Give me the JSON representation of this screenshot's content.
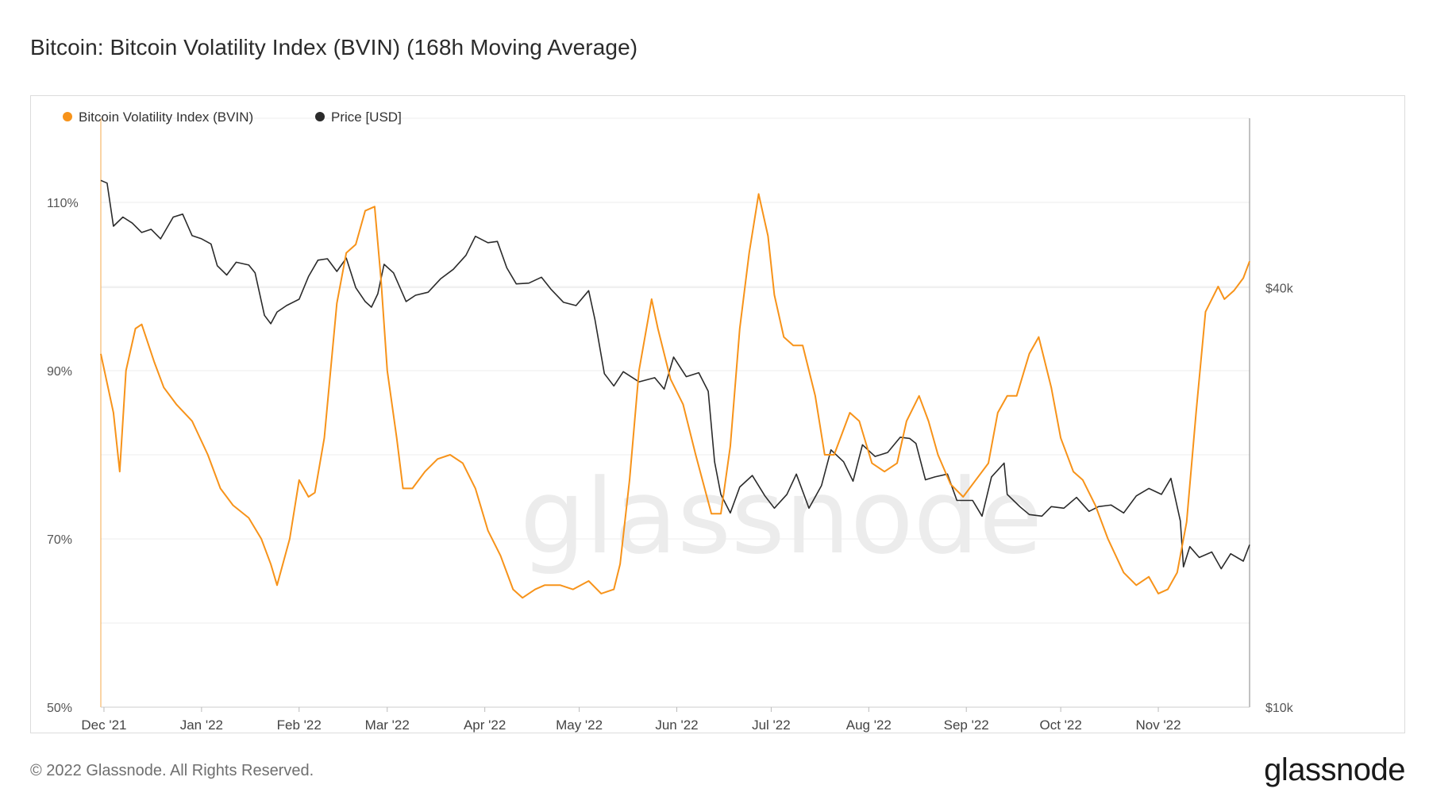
{
  "title": "Bitcoin: Bitcoin Volatility Index (BVIN) (168h Moving Average)",
  "footer": {
    "copyright": "© 2022 Glassnode. All Rights Reserved.",
    "logo": "glassnode"
  },
  "watermark": "glassnode",
  "colors": {
    "bvin": "#f7931a",
    "price": "#2b2b2b",
    "grid": "#ececec",
    "axis_text": "#555555"
  },
  "chart_data": {
    "type": "line",
    "title": "Bitcoin: Bitcoin Volatility Index (BVIN) (168h Moving Average)",
    "x_tick_labels": [
      "Dec '21",
      "Jan '22",
      "Feb '22",
      "Mar '22",
      "Apr '22",
      "May '22",
      "Jun '22",
      "Jul '22",
      "Aug '22",
      "Sep '22",
      "Oct '22",
      "Nov '22"
    ],
    "x_range": [
      "2021-11-30",
      "2022-11-30"
    ],
    "y_left": {
      "range": [
        50,
        120
      ],
      "unit": "%",
      "tick_labels": [
        "50%",
        "70%",
        "90%",
        "110%"
      ],
      "tick_values": [
        50,
        70,
        90,
        110
      ]
    },
    "y_right": {
      "scale": "log",
      "range": [
        10000,
        70000
      ],
      "tick_labels": [
        "$10k",
        "$40k"
      ],
      "tick_values": [
        10000,
        40000
      ]
    },
    "legend_position": "top-left",
    "grid": true,
    "series": [
      {
        "name": "Bitcoin Volatility Index (BVIN)",
        "axis": "left",
        "points": [
          [
            "2021-11-30",
            92
          ],
          [
            "2021-12-04",
            85
          ],
          [
            "2021-12-06",
            78
          ],
          [
            "2021-12-08",
            90
          ],
          [
            "2021-12-11",
            95
          ],
          [
            "2021-12-13",
            95.5
          ],
          [
            "2021-12-17",
            91
          ],
          [
            "2021-12-20",
            88
          ],
          [
            "2021-12-24",
            86
          ],
          [
            "2021-12-29",
            84
          ],
          [
            "2022-01-03",
            80
          ],
          [
            "2022-01-07",
            76
          ],
          [
            "2022-01-11",
            74
          ],
          [
            "2022-01-16",
            72.5
          ],
          [
            "2022-01-20",
            70
          ],
          [
            "2022-01-23",
            67
          ],
          [
            "2022-01-25",
            64.5
          ],
          [
            "2022-01-29",
            70
          ],
          [
            "2022-02-01",
            77
          ],
          [
            "2022-02-04",
            75
          ],
          [
            "2022-02-06",
            75.5
          ],
          [
            "2022-02-09",
            82
          ],
          [
            "2022-02-13",
            98
          ],
          [
            "2022-02-16",
            104
          ],
          [
            "2022-02-19",
            105
          ],
          [
            "2022-02-22",
            109
          ],
          [
            "2022-02-25",
            109.5
          ],
          [
            "2022-02-27",
            101
          ],
          [
            "2022-03-01",
            90
          ],
          [
            "2022-03-04",
            82
          ],
          [
            "2022-03-06",
            76
          ],
          [
            "2022-03-09",
            76
          ],
          [
            "2022-03-13",
            78
          ],
          [
            "2022-03-17",
            79.5
          ],
          [
            "2022-03-21",
            80
          ],
          [
            "2022-03-25",
            79
          ],
          [
            "2022-03-29",
            76
          ],
          [
            "2022-04-02",
            71
          ],
          [
            "2022-04-06",
            68
          ],
          [
            "2022-04-10",
            64
          ],
          [
            "2022-04-13",
            63
          ],
          [
            "2022-04-17",
            64
          ],
          [
            "2022-04-20",
            64.5
          ],
          [
            "2022-04-25",
            64.5
          ],
          [
            "2022-04-29",
            64
          ],
          [
            "2022-05-04",
            65
          ],
          [
            "2022-05-08",
            63.5
          ],
          [
            "2022-05-12",
            64
          ],
          [
            "2022-05-14",
            67
          ],
          [
            "2022-05-17",
            77
          ],
          [
            "2022-05-20",
            90
          ],
          [
            "2022-05-24",
            98.5
          ],
          [
            "2022-05-26",
            95
          ],
          [
            "2022-05-30",
            89
          ],
          [
            "2022-06-03",
            86
          ],
          [
            "2022-06-07",
            80
          ],
          [
            "2022-06-12",
            73
          ],
          [
            "2022-06-15",
            73
          ],
          [
            "2022-06-18",
            81
          ],
          [
            "2022-06-21",
            95
          ],
          [
            "2022-06-24",
            104
          ],
          [
            "2022-06-27",
            111
          ],
          [
            "2022-06-30",
            106
          ],
          [
            "2022-07-02",
            99
          ],
          [
            "2022-07-05",
            94
          ],
          [
            "2022-07-08",
            93
          ],
          [
            "2022-07-11",
            93
          ],
          [
            "2022-07-15",
            87
          ],
          [
            "2022-07-18",
            80
          ],
          [
            "2022-07-21",
            80
          ],
          [
            "2022-07-26",
            85
          ],
          [
            "2022-07-29",
            84
          ],
          [
            "2022-08-02",
            79
          ],
          [
            "2022-08-06",
            78
          ],
          [
            "2022-08-10",
            79
          ],
          [
            "2022-08-13",
            84
          ],
          [
            "2022-08-17",
            87
          ],
          [
            "2022-08-20",
            84
          ],
          [
            "2022-08-23",
            80
          ],
          [
            "2022-08-27",
            76.5
          ],
          [
            "2022-08-31",
            75
          ],
          [
            "2022-09-04",
            77
          ],
          [
            "2022-09-08",
            79
          ],
          [
            "2022-09-11",
            85
          ],
          [
            "2022-09-14",
            87
          ],
          [
            "2022-09-17",
            87
          ],
          [
            "2022-09-21",
            92
          ],
          [
            "2022-09-24",
            94
          ],
          [
            "2022-09-28",
            88
          ],
          [
            "2022-10-01",
            82
          ],
          [
            "2022-10-05",
            78
          ],
          [
            "2022-10-08",
            77
          ],
          [
            "2022-10-12",
            74
          ],
          [
            "2022-10-16",
            70
          ],
          [
            "2022-10-21",
            66
          ],
          [
            "2022-10-25",
            64.5
          ],
          [
            "2022-10-29",
            65.5
          ],
          [
            "2022-11-01",
            63.5
          ],
          [
            "2022-11-04",
            64
          ],
          [
            "2022-11-07",
            66
          ],
          [
            "2022-11-10",
            72
          ],
          [
            "2022-11-13",
            85
          ],
          [
            "2022-11-16",
            97
          ],
          [
            "2022-11-20",
            100
          ],
          [
            "2022-11-22",
            98.5
          ],
          [
            "2022-11-25",
            99.5
          ],
          [
            "2022-11-28",
            101
          ],
          [
            "2022-11-30",
            103
          ]
        ]
      },
      {
        "name": "Price [USD]",
        "axis": "right",
        "points": [
          [
            "2021-11-30",
            57000
          ],
          [
            "2021-12-02",
            56500
          ],
          [
            "2021-12-04",
            49000
          ],
          [
            "2021-12-07",
            50500
          ],
          [
            "2021-12-10",
            49500
          ],
          [
            "2021-12-13",
            48000
          ],
          [
            "2021-12-16",
            48500
          ],
          [
            "2021-12-19",
            47000
          ],
          [
            "2021-12-23",
            50500
          ],
          [
            "2021-12-26",
            51000
          ],
          [
            "2021-12-29",
            47500
          ],
          [
            "2022-01-01",
            47000
          ],
          [
            "2022-01-04",
            46200
          ],
          [
            "2022-01-06",
            43000
          ],
          [
            "2022-01-09",
            41700
          ],
          [
            "2022-01-12",
            43500
          ],
          [
            "2022-01-16",
            43100
          ],
          [
            "2022-01-18",
            42000
          ],
          [
            "2022-01-21",
            36500
          ],
          [
            "2022-01-23",
            35500
          ],
          [
            "2022-01-25",
            36900
          ],
          [
            "2022-01-28",
            37700
          ],
          [
            "2022-02-01",
            38500
          ],
          [
            "2022-02-04",
            41500
          ],
          [
            "2022-02-07",
            43800
          ],
          [
            "2022-02-10",
            44000
          ],
          [
            "2022-02-13",
            42200
          ],
          [
            "2022-02-16",
            44100
          ],
          [
            "2022-02-19",
            40000
          ],
          [
            "2022-02-22",
            38200
          ],
          [
            "2022-02-24",
            37500
          ],
          [
            "2022-02-26",
            39200
          ],
          [
            "2022-02-28",
            43200
          ],
          [
            "2022-03-03",
            42000
          ],
          [
            "2022-03-07",
            38200
          ],
          [
            "2022-03-10",
            39000
          ],
          [
            "2022-03-14",
            39400
          ],
          [
            "2022-03-18",
            41200
          ],
          [
            "2022-03-22",
            42500
          ],
          [
            "2022-03-26",
            44500
          ],
          [
            "2022-03-29",
            47400
          ],
          [
            "2022-04-02",
            46400
          ],
          [
            "2022-04-05",
            46600
          ],
          [
            "2022-04-08",
            42700
          ],
          [
            "2022-04-11",
            40500
          ],
          [
            "2022-04-15",
            40600
          ],
          [
            "2022-04-19",
            41400
          ],
          [
            "2022-04-22",
            39800
          ],
          [
            "2022-04-26",
            38100
          ],
          [
            "2022-04-30",
            37700
          ],
          [
            "2022-05-04",
            39600
          ],
          [
            "2022-05-06",
            36000
          ],
          [
            "2022-05-09",
            30100
          ],
          [
            "2022-05-12",
            28900
          ],
          [
            "2022-05-15",
            30300
          ],
          [
            "2022-05-20",
            29300
          ],
          [
            "2022-05-25",
            29700
          ],
          [
            "2022-05-28",
            28600
          ],
          [
            "2022-05-31",
            31800
          ],
          [
            "2022-06-04",
            29800
          ],
          [
            "2022-06-08",
            30200
          ],
          [
            "2022-06-11",
            28400
          ],
          [
            "2022-06-13",
            22500
          ],
          [
            "2022-06-15",
            20200
          ],
          [
            "2022-06-18",
            19000
          ],
          [
            "2022-06-21",
            20700
          ],
          [
            "2022-06-25",
            21500
          ],
          [
            "2022-06-29",
            20100
          ],
          [
            "2022-07-02",
            19300
          ],
          [
            "2022-07-06",
            20200
          ],
          [
            "2022-07-09",
            21600
          ],
          [
            "2022-07-13",
            19300
          ],
          [
            "2022-07-17",
            20800
          ],
          [
            "2022-07-20",
            23400
          ],
          [
            "2022-07-24",
            22500
          ],
          [
            "2022-07-27",
            21100
          ],
          [
            "2022-07-30",
            23800
          ],
          [
            "2022-08-03",
            22900
          ],
          [
            "2022-08-07",
            23200
          ],
          [
            "2022-08-11",
            24400
          ],
          [
            "2022-08-14",
            24300
          ],
          [
            "2022-08-16",
            23900
          ],
          [
            "2022-08-19",
            21200
          ],
          [
            "2022-08-22",
            21400
          ],
          [
            "2022-08-26",
            21600
          ],
          [
            "2022-08-29",
            19800
          ],
          [
            "2022-09-03",
            19800
          ],
          [
            "2022-09-06",
            18800
          ],
          [
            "2022-09-09",
            21400
          ],
          [
            "2022-09-13",
            22400
          ],
          [
            "2022-09-14",
            20200
          ],
          [
            "2022-09-18",
            19400
          ],
          [
            "2022-09-21",
            18900
          ],
          [
            "2022-09-25",
            18800
          ],
          [
            "2022-09-28",
            19400
          ],
          [
            "2022-10-02",
            19300
          ],
          [
            "2022-10-06",
            20000
          ],
          [
            "2022-10-10",
            19100
          ],
          [
            "2022-10-13",
            19400
          ],
          [
            "2022-10-17",
            19500
          ],
          [
            "2022-10-21",
            19000
          ],
          [
            "2022-10-25",
            20100
          ],
          [
            "2022-10-29",
            20600
          ],
          [
            "2022-11-02",
            20200
          ],
          [
            "2022-11-05",
            21300
          ],
          [
            "2022-11-08",
            18500
          ],
          [
            "2022-11-09",
            15900
          ],
          [
            "2022-11-11",
            17000
          ],
          [
            "2022-11-14",
            16400
          ],
          [
            "2022-11-18",
            16700
          ],
          [
            "2022-11-21",
            15800
          ],
          [
            "2022-11-24",
            16600
          ],
          [
            "2022-11-28",
            16200
          ],
          [
            "2022-11-30",
            17100
          ]
        ]
      }
    ]
  }
}
